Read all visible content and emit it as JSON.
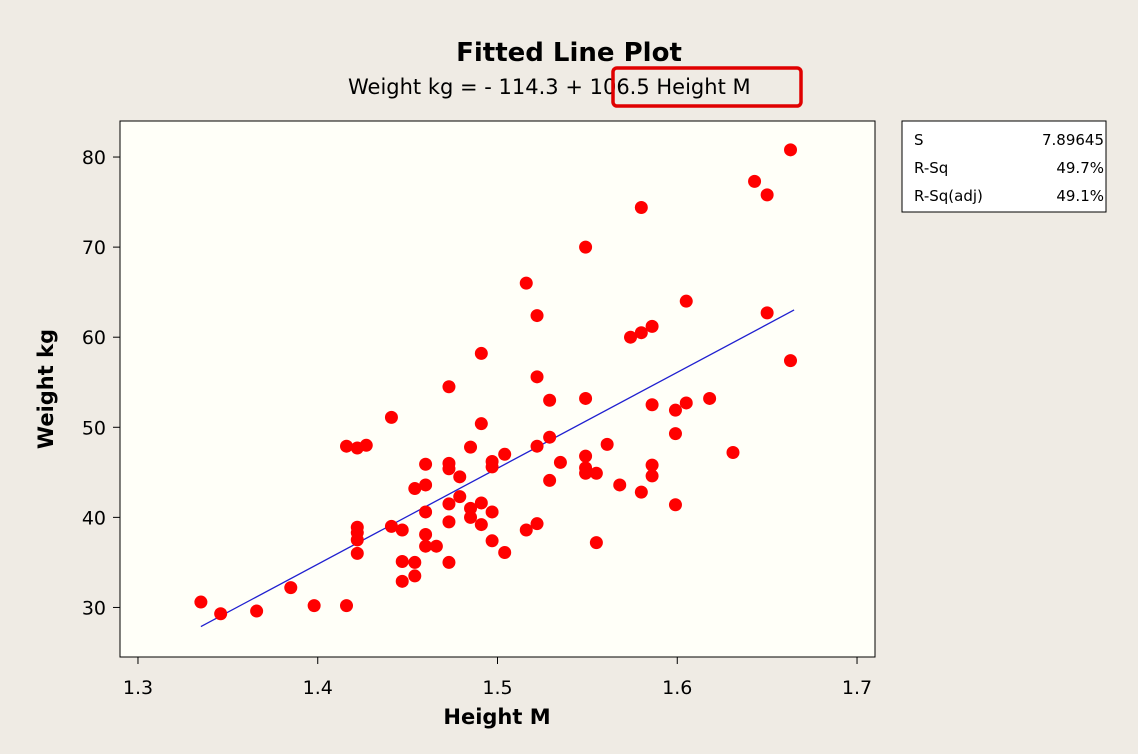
{
  "chart_data": {
    "type": "scatter",
    "title": "Fitted Line Plot",
    "subtitle_prefix": "Weight kg =  - 114.3 + ",
    "subtitle_highlight": "106.5 Height M",
    "xlabel": "Height M",
    "ylabel": "Weight kg",
    "xlim": [
      1.29,
      1.71
    ],
    "ylim": [
      24.5,
      84
    ],
    "xticks": [
      1.3,
      1.4,
      1.5,
      1.6,
      1.7
    ],
    "xtick_labels": [
      "1.3",
      "1.4",
      "1.5",
      "1.6",
      "1.7"
    ],
    "yticks": [
      30,
      40,
      50,
      60,
      70,
      80
    ],
    "ytick_labels": [
      "30",
      "40",
      "50",
      "60",
      "70",
      "80"
    ],
    "grid": false,
    "point_color": "#ff0000",
    "line_color": "#2020d0",
    "highlight_color": "#e00000",
    "fit_line": {
      "intercept": -114.3,
      "slope": 106.5,
      "x_range": [
        1.335,
        1.665
      ]
    },
    "points": [
      [
        1.335,
        30.6
      ],
      [
        1.346,
        29.3
      ],
      [
        1.366,
        29.6
      ],
      [
        1.385,
        32.2
      ],
      [
        1.398,
        30.2
      ],
      [
        1.416,
        30.2
      ],
      [
        1.416,
        47.9
      ],
      [
        1.422,
        47.7
      ],
      [
        1.427,
        48.0
      ],
      [
        1.422,
        38.9
      ],
      [
        1.422,
        38.3
      ],
      [
        1.422,
        37.5
      ],
      [
        1.422,
        36.0
      ],
      [
        1.441,
        51.1
      ],
      [
        1.441,
        39.0
      ],
      [
        1.447,
        38.6
      ],
      [
        1.447,
        35.1
      ],
      [
        1.447,
        32.9
      ],
      [
        1.454,
        43.2
      ],
      [
        1.454,
        35.0
      ],
      [
        1.454,
        33.5
      ],
      [
        1.46,
        45.9
      ],
      [
        1.46,
        43.6
      ],
      [
        1.46,
        40.6
      ],
      [
        1.46,
        38.1
      ],
      [
        1.46,
        36.8
      ],
      [
        1.466,
        36.8
      ],
      [
        1.473,
        54.5
      ],
      [
        1.473,
        46.0
      ],
      [
        1.473,
        45.4
      ],
      [
        1.473,
        41.5
      ],
      [
        1.473,
        39.5
      ],
      [
        1.473,
        35.0
      ],
      [
        1.479,
        44.5
      ],
      [
        1.479,
        42.3
      ],
      [
        1.485,
        47.8
      ],
      [
        1.485,
        41.0
      ],
      [
        1.485,
        40.0
      ],
      [
        1.491,
        58.2
      ],
      [
        1.491,
        50.4
      ],
      [
        1.491,
        41.6
      ],
      [
        1.491,
        39.2
      ],
      [
        1.497,
        46.2
      ],
      [
        1.497,
        45.6
      ],
      [
        1.497,
        40.6
      ],
      [
        1.497,
        37.4
      ],
      [
        1.504,
        47.0
      ],
      [
        1.504,
        36.1
      ],
      [
        1.516,
        66.0
      ],
      [
        1.516,
        38.6
      ],
      [
        1.522,
        62.4
      ],
      [
        1.522,
        55.6
      ],
      [
        1.522,
        47.9
      ],
      [
        1.522,
        39.3
      ],
      [
        1.529,
        53.0
      ],
      [
        1.529,
        48.9
      ],
      [
        1.529,
        44.1
      ],
      [
        1.535,
        46.1
      ],
      [
        1.549,
        70.0
      ],
      [
        1.549,
        53.2
      ],
      [
        1.549,
        46.8
      ],
      [
        1.549,
        45.5
      ],
      [
        1.549,
        44.9
      ],
      [
        1.555,
        44.9
      ],
      [
        1.555,
        37.2
      ],
      [
        1.561,
        48.1
      ],
      [
        1.568,
        43.6
      ],
      [
        1.574,
        60.0
      ],
      [
        1.58,
        74.4
      ],
      [
        1.58,
        60.5
      ],
      [
        1.58,
        42.8
      ],
      [
        1.586,
        61.2
      ],
      [
        1.586,
        52.5
      ],
      [
        1.586,
        45.8
      ],
      [
        1.586,
        44.6
      ],
      [
        1.599,
        51.9
      ],
      [
        1.599,
        49.3
      ],
      [
        1.599,
        41.4
      ],
      [
        1.605,
        64.0
      ],
      [
        1.605,
        52.7
      ],
      [
        1.618,
        53.2
      ],
      [
        1.631,
        47.2
      ],
      [
        1.643,
        77.3
      ],
      [
        1.65,
        75.8
      ],
      [
        1.65,
        62.7
      ],
      [
        1.663,
        80.8
      ],
      [
        1.663,
        57.4
      ]
    ],
    "stats": [
      {
        "label": "S",
        "value": "7.89645"
      },
      {
        "label": "R-Sq",
        "value": "49.7%"
      },
      {
        "label": "R-Sq(adj)",
        "value": "49.1%"
      }
    ]
  }
}
